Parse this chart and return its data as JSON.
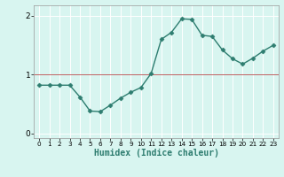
{
  "x": [
    0,
    1,
    2,
    3,
    4,
    5,
    6,
    7,
    8,
    9,
    10,
    11,
    12,
    13,
    14,
    15,
    16,
    17,
    18,
    19,
    20,
    21,
    22,
    23
  ],
  "y": [
    0.82,
    0.82,
    0.82,
    0.82,
    0.62,
    0.38,
    0.37,
    0.48,
    0.6,
    0.7,
    0.78,
    1.02,
    1.6,
    1.72,
    1.95,
    1.94,
    1.67,
    1.65,
    1.42,
    1.27,
    1.18,
    1.28,
    1.4,
    1.5
  ],
  "line_color": "#2e7d70",
  "marker": "D",
  "marker_size": 2.5,
  "background_color": "#d8f5f0",
  "grid_color": "#c0e8e0",
  "xlabel": "Humidex (Indice chaleur)",
  "ylim": [
    -0.08,
    2.18
  ],
  "xlim": [
    -0.5,
    23.5
  ],
  "yticks": [
    0,
    1,
    2
  ],
  "xticks": [
    0,
    1,
    2,
    3,
    4,
    5,
    6,
    7,
    8,
    9,
    10,
    11,
    12,
    13,
    14,
    15,
    16,
    17,
    18,
    19,
    20,
    21,
    22,
    23
  ],
  "red_hline_y": [
    1
  ],
  "xlabel_fontsize": 7,
  "tick_fontsize": 6.5,
  "line_width": 1.0
}
